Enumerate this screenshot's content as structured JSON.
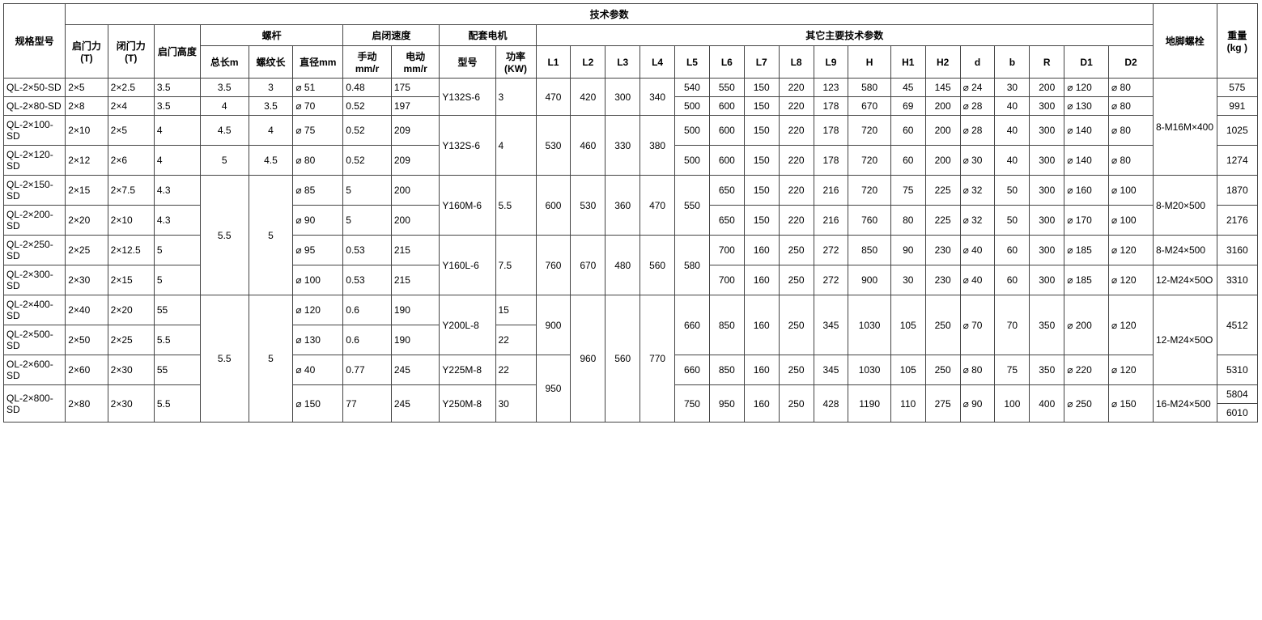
{
  "hdr": {
    "tech_params": "技术参数",
    "model": "规格型号",
    "open_force": "启门力 (T)",
    "close_force": "闭门力 (T)",
    "open_height": "启门高度",
    "screw": "螺杆",
    "total_len": "总长m",
    "thread_len": "螺纹长",
    "diameter": "直径mm",
    "speed": "启闭速度",
    "manual": "手动 mm/r",
    "electric": "电动 mm/r",
    "motor": "配套电机",
    "motor_model": "型号",
    "power": "功率 (KW)",
    "other": "其它主要技术参数",
    "L1": "L1",
    "L2": "L2",
    "L3": "L3",
    "L4": "L4",
    "L5": "L5",
    "L6": "L6",
    "L7": "L7",
    "L8": "L8",
    "L9": "L9",
    "H": "H",
    "H1": "H1",
    "H2": "H2",
    "d": "d",
    "b": "b",
    "R": "R",
    "D1": "D1",
    "D2": "D2",
    "anchor": "地脚螺栓",
    "weight": "重量 (kg )"
  },
  "phi": "⌀",
  "group1": {
    "motor": "Y132S-6",
    "power": "3",
    "L1": "470",
    "L2": "420",
    "L3": "300",
    "L4": "340",
    "r1": {
      "model": "QL-2×50-SD",
      "qml": "2×5",
      "bml": "2×2.5",
      "qbh": "3.5",
      "zc": "3.5",
      "lwc": "3",
      "dia": "⌀ 51",
      "man": "0.48",
      "elec": "175",
      "L5": "540",
      "L6": "550",
      "L7": "150",
      "L8": "220",
      "L9": "123",
      "H": "580",
      "H1": "45",
      "H2": "145",
      "d": "⌀ 24",
      "b": "30",
      "R": "200",
      "D1": "⌀ 120",
      "D2": "⌀ 80",
      "wt": "575"
    },
    "r2": {
      "model": "QL-2×80-SD",
      "qml": "2×8",
      "bml": "2×4",
      "qbh": "3.5",
      "zc": "4",
      "lwc": "3.5",
      "dia": "⌀ 70",
      "man": "0.52",
      "elec": "197",
      "L5": "500",
      "L6": "600",
      "L7": "150",
      "L8": "220",
      "L9": "178",
      "H": "670",
      "H1": "69",
      "H2": "200",
      "d": "⌀ 28",
      "b": "40",
      "R": "300",
      "D1": "⌀ 130",
      "D2": "⌀ 80",
      "wt": "991"
    }
  },
  "group2": {
    "motor": "Y132S-6",
    "power": "4",
    "L1": "530",
    "L2": "460",
    "L3": "330",
    "L4": "380",
    "r1": {
      "model": "QL-2×100-SD",
      "qml": "2×10",
      "bml": "2×5",
      "qbh": "4",
      "zc": "4.5",
      "lwc": "4",
      "dia": "⌀ 75",
      "man": "0.52",
      "elec": "209",
      "L5": "500",
      "L6": "600",
      "L7": "150",
      "L8": "220",
      "L9": "178",
      "H": "720",
      "H1": "60",
      "H2": "200",
      "d": "⌀ 28",
      "b": "40",
      "R": "300",
      "D1": "⌀ 140",
      "D2": "⌀ 80",
      "wt": "1025"
    },
    "r2": {
      "model": "QL-2×120-SD",
      "qml": "2×12",
      "bml": "2×6",
      "qbh": "4",
      "zc": "5",
      "lwc": "4.5",
      "dia": "⌀ 80",
      "man": "0.52",
      "elec": "209",
      "L5": "500",
      "L6": "600",
      "L7": "150",
      "L8": "220",
      "L9": "178",
      "H": "720",
      "H1": "60",
      "H2": "200",
      "d": "⌀ 30",
      "b": "40",
      "R": "300",
      "D1": "⌀ 140",
      "D2": "⌀ 80",
      "wt": "1274"
    }
  },
  "bolt1": "8-M16M×400",
  "mid": {
    "zc": "5.5",
    "lwc": "5",
    "g3": {
      "motor": "Y160M-6",
      "power": "5.5",
      "L1": "600",
      "L2": "530",
      "L3": "360",
      "L4": "470",
      "L5": "550",
      "r1": {
        "model": "QL-2×150-SD",
        "qml": "2×15",
        "bml": "2×7.5",
        "qbh": "4.3",
        "dia": "⌀ 85",
        "man": "5",
        "elec": "200",
        "L6": "650",
        "L7": "150",
        "L8": "220",
        "L9": "216",
        "H": "720",
        "H1": "75",
        "H2": "225",
        "d": "⌀ 32",
        "b": "50",
        "R": "300",
        "D1": "⌀ 160",
        "D2": "⌀ 100",
        "wt": "1870"
      },
      "r2": {
        "model": "QL-2×200-SD",
        "qml": "2×20",
        "bml": "2×10",
        "qbh": "4.3",
        "dia": "⌀ 90",
        "man": "5",
        "elec": "200",
        "L6": "650",
        "L7": "150",
        "L8": "220",
        "L9": "216",
        "H": "760",
        "H1": "80",
        "H2": "225",
        "d": "⌀ 32",
        "b": "50",
        "R": "300",
        "D1": "⌀ 170",
        "D2": "⌀ 100",
        "wt": "2176"
      }
    },
    "g4": {
      "motor": "Y160L-6",
      "power": "7.5",
      "L1": "760",
      "L2": "670",
      "L3": "480",
      "L4": "560",
      "L5": "580",
      "r1": {
        "model": "QL-2×250-SD",
        "qml": "2×25",
        "bml": "2×12.5",
        "qbh": "5",
        "dia": "⌀ 95",
        "man": "0.53",
        "elec": "215",
        "L6": "700",
        "L7": "160",
        "L8": "250",
        "L9": "272",
        "H": "850",
        "H1": "90",
        "H2": "230",
        "d": "⌀ 40",
        "b": "60",
        "R": "300",
        "D1": "⌀ 185",
        "D2": "⌀ 120",
        "bolt": "8-M24×500",
        "wt": "3160"
      },
      "r2": {
        "model": "QL-2×300-SD",
        "qml": "2×30",
        "bml": "2×15",
        "qbh": "5",
        "dia": "⌀ 100",
        "man": "0.53",
        "elec": "215",
        "L6": "700",
        "L7": "160",
        "L8": "250",
        "L9": "272",
        "H": "900",
        "H1": "30",
        "H2": "230",
        "d": "⌀ 40",
        "b": "60",
        "R": "300",
        "D1": "⌀ 185",
        "D2": "⌀ 120",
        "bolt": "12-M24×50O",
        "wt": "3310"
      }
    }
  },
  "bolt2": "8-M20×500",
  "bot": {
    "zc": "5.5",
    "lwc": "5",
    "L2": "960",
    "L3": "560",
    "L4": "770",
    "g5": {
      "motor": "Y200L-8",
      "L1": "900",
      "L5": "660",
      "L6": "850",
      "L7": "160",
      "L8": "250",
      "L9": "345",
      "H": "1030",
      "H1": "105",
      "H2": "250",
      "d": "⌀ 70",
      "b": "70",
      "R": "350",
      "D1": "⌀ 200",
      "D2": "⌀ 120",
      "wt": "4512",
      "r1": {
        "model": "QL-2×400-SD",
        "qml": "2×40",
        "bml": "2×20",
        "qbh": "55",
        "dia": "⌀ 120",
        "man": "0.6",
        "elec": "190",
        "power": "15"
      },
      "r2": {
        "model": "QL-2×500-SD",
        "qml": "2×50",
        "bml": "2×25",
        "qbh": "5.5",
        "dia": "⌀ 130",
        "man": "0.6",
        "elec": "190",
        "power": "22"
      }
    },
    "bolt3": "12-M24×50O",
    "g6": {
      "L1": "950",
      "r1": {
        "model": "OL-2×600-SD",
        "qml": "2×60",
        "bml": "2×30",
        "qbh": "55",
        "dia": "⌀ 40",
        "man": "0.77",
        "elec": "245",
        "motor": "Y225M-8",
        "power": "22",
        "L5": "660",
        "L6": "850",
        "L7": "160",
        "L8": "250",
        "L9": "345",
        "H": "1030",
        "H1": "105",
        "H2": "250",
        "d": "⌀ 80",
        "b": "75",
        "R": "350",
        "D1": "⌀ 220",
        "D2": "⌀ 120",
        "wt": "5310"
      },
      "r2": {
        "model": "QL-2×800-SD",
        "qml": "2×80",
        "bml": "2×30",
        "qbh": "5.5",
        "dia": "⌀ 150",
        "man": "77",
        "elec": "245",
        "motor": "Y250M-8",
        "power": "30",
        "L5": "750",
        "L6": "950",
        "L7": "160",
        "L8": "250",
        "L9": "428",
        "H": "1190",
        "H1": "110",
        "H2": "275",
        "d": "⌀ 90",
        "b": "100",
        "R": "400",
        "D1": "⌀ 250",
        "D2": "⌀ 150",
        "bolt": "16-M24×500",
        "wt1": "5804",
        "wt2": "6010"
      }
    }
  }
}
